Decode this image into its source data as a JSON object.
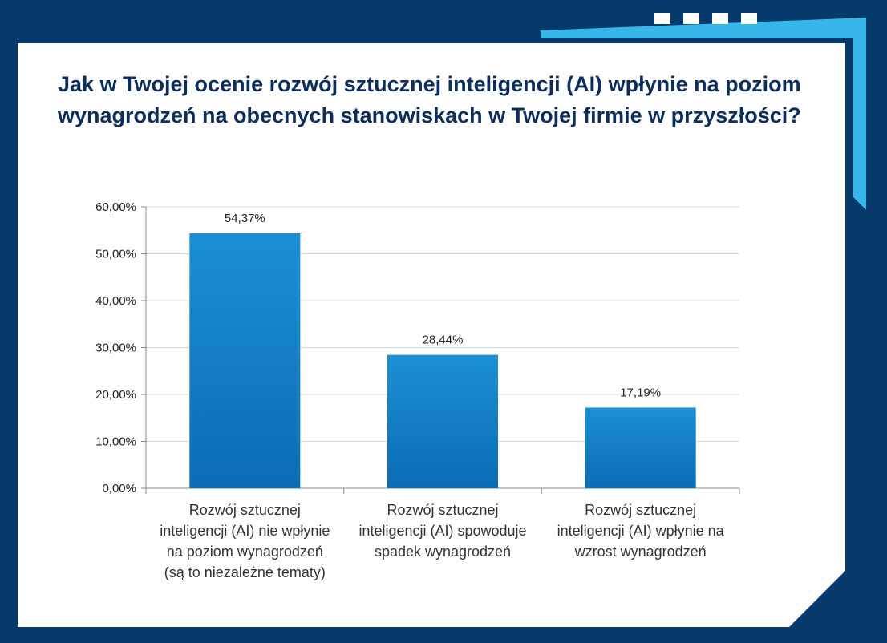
{
  "colors": {
    "background": "#063a6b",
    "card": "#ffffff",
    "accent": "#37b6ea",
    "bar_top": "#1c8fd4",
    "bar_bottom": "#0a6cb4",
    "title": "#0d2e5c"
  },
  "chart_data": {
    "type": "bar",
    "title": "Jak w Twojej ocenie rozwój sztucznej inteligencji (AI) wpłynie na poziom wynagrodzeń na obecnych stanowiskach w Twojej firmie w przyszłości?",
    "categories": [
      "Rozwój sztucznej inteligencji (AI) nie wpłynie na poziom wynagrodzeń (są to niezależne tematy)",
      "Rozwój sztucznej inteligencji (AI) spowoduje spadek wynagrodzeń",
      "Rozwój sztucznej inteligencji (AI) wpłynie na wzrost wynagrodzeń"
    ],
    "values": [
      54.37,
      28.44,
      17.19
    ],
    "data_labels": [
      "54,37%",
      "28,44%",
      "17,19%"
    ],
    "yticks": [
      0,
      10,
      20,
      30,
      40,
      50,
      60
    ],
    "ytick_labels": [
      "0,00%",
      "10,00%",
      "20,00%",
      "30,00%",
      "40,00%",
      "50,00%",
      "60,00%"
    ],
    "ylim": [
      0,
      60
    ],
    "grid": true,
    "legend": "none",
    "xlabel": "",
    "ylabel": ""
  }
}
